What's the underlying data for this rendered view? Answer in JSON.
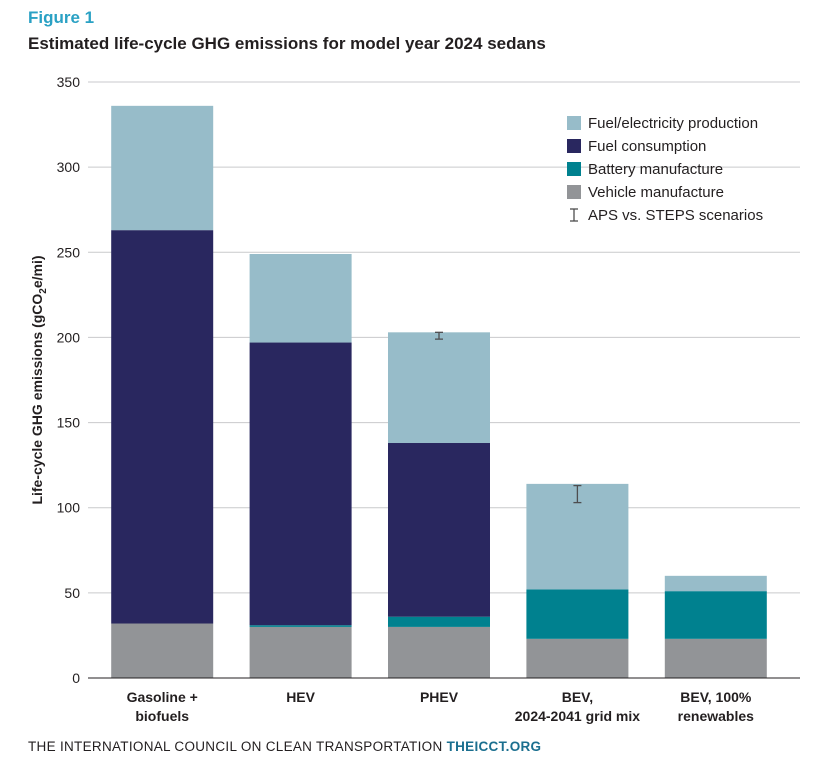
{
  "figure_label": "Figure 1",
  "footer": {
    "org": "THE INTERNATIONAL COUNCIL ON CLEAN TRANSPORTATION",
    "site": "THEICCT.ORG"
  },
  "chart_data": {
    "type": "bar",
    "stacked": true,
    "title": "Estimated life-cycle GHG emissions for model year 2024 sedans",
    "xlabel": "",
    "ylabel_parts": [
      "Life-cycle GHG emissions (gCO",
      "2",
      "e/mi)"
    ],
    "ylim": [
      0,
      350
    ],
    "yticks": [
      0,
      50,
      100,
      150,
      200,
      250,
      300,
      350
    ],
    "grid": true,
    "legend_position": "top-right",
    "categories": [
      [
        "Gasoline +",
        "biofuels"
      ],
      [
        "HEV"
      ],
      [
        "PHEV"
      ],
      [
        "BEV,",
        "2024-2041 grid mix"
      ],
      [
        "BEV, 100%",
        "renewables"
      ]
    ],
    "series": [
      {
        "name": "Vehicle manufacture",
        "color": "#929497",
        "values": [
          32,
          30,
          30,
          23,
          23
        ]
      },
      {
        "name": "Battery manufacture",
        "color": "#00818f",
        "values": [
          0,
          1,
          6,
          29,
          28
        ]
      },
      {
        "name": "Fuel consumption",
        "color": "#29275f",
        "values": [
          231,
          166,
          102,
          0,
          0
        ]
      },
      {
        "name": "Fuel/electricity production",
        "color": "#97bcc9",
        "values": [
          73,
          52,
          65,
          62,
          9
        ]
      }
    ],
    "error_bars": {
      "name": "APS vs. STEPS scenarios",
      "values": [
        null,
        null,
        [
          199,
          203
        ],
        [
          103,
          113
        ],
        null
      ]
    }
  }
}
